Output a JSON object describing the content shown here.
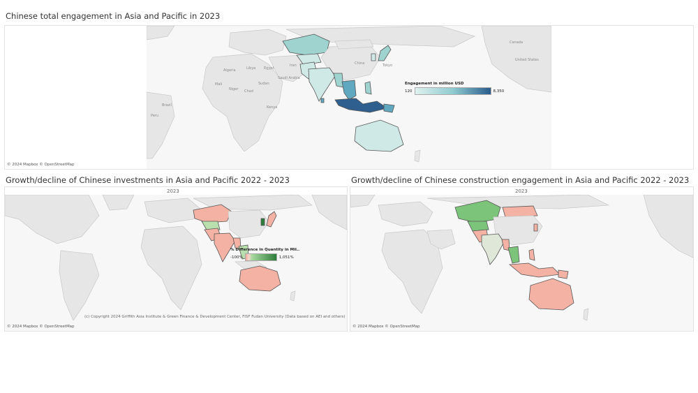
{
  "map1": {
    "title": "Chinese total engagement in Asia and Pacific in 2023",
    "credit": "© 2024 Mapbox © OpenStreetMap",
    "legend": {
      "title": "Engagement in million USD",
      "min": "120",
      "max": "8,350",
      "color_low": "#dff1ef",
      "color_high": "#2a5b8c"
    },
    "cities": [
      "Tokyo",
      "China",
      "Algeria",
      "Chad",
      "Niger",
      "Egypt",
      "Mali",
      "Libya",
      "Iran",
      "Saudi Arabia",
      "Sudan",
      "Kenya",
      "Peru",
      "Brazil",
      "Canada",
      "United States"
    ]
  },
  "map2": {
    "title": "Growth/decline of Chinese investments in Asia and Pacific 2022 - 2023",
    "year": "2023",
    "credit": "© 2024 Mapbox © OpenStreetMap",
    "legend": {
      "title": "% Difference in Quantity in Mil..",
      "min": "-100%",
      "max": "1,051%",
      "color_low": "#f4a99a",
      "color_high": "#2e7d3a"
    },
    "copyright": "(c) Copyright 2024 Griffith Asia Institute & Green Finance & Development Center, FISF Fudan University (Data based on AEI and others)"
  },
  "map3": {
    "title": "Growth/decline of Chinese construction engagement in Asia and Pacific 2022 - 2023",
    "year": "2023",
    "credit": "© 2024 Mapbox © OpenStreetMap"
  },
  "colors": {
    "teal_light": "#cfe9e6",
    "teal_mid": "#9fd3d0",
    "teal_dark": "#5fa8bf",
    "navy": "#2e5f8e",
    "green": "#7cc47a",
    "green_light": "#b9dfae",
    "salmon": "#f4b2a4",
    "salmon_dark": "#ee9887"
  }
}
